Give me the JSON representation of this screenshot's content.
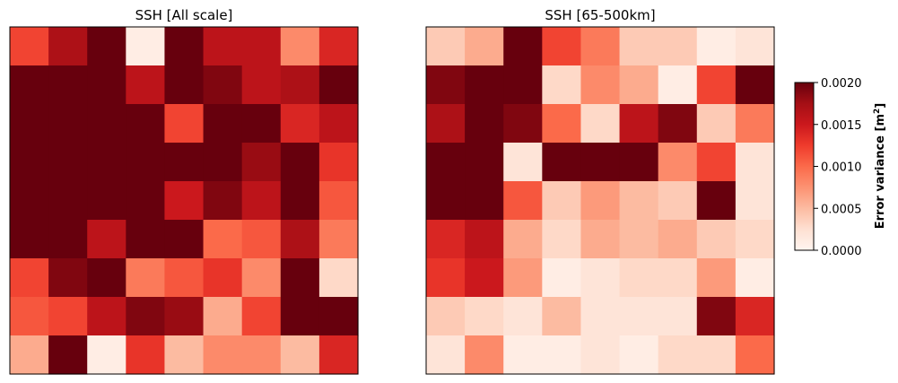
{
  "chart_data": [
    {
      "type": "heatmap",
      "title": "SSH [All scale]",
      "rows": 9,
      "cols": 9,
      "values": [
        [
          0.0012,
          0.0017,
          0.002,
          0.0001,
          0.002,
          0.0016,
          0.0016,
          0.0008,
          0.0014
        ],
        [
          0.002,
          0.002,
          0.002,
          0.0016,
          0.002,
          0.0019,
          0.0016,
          0.0017,
          0.002
        ],
        [
          0.002,
          0.002,
          0.002,
          0.002,
          0.0012,
          0.002,
          0.002,
          0.0014,
          0.0016
        ],
        [
          0.002,
          0.002,
          0.002,
          0.002,
          0.002,
          0.002,
          0.0018,
          0.002,
          0.0013
        ],
        [
          0.002,
          0.002,
          0.002,
          0.002,
          0.0015,
          0.0019,
          0.0016,
          0.002,
          0.0011
        ],
        [
          0.002,
          0.002,
          0.0016,
          0.002,
          0.002,
          0.001,
          0.0011,
          0.0017,
          0.0009
        ],
        [
          0.0012,
          0.0019,
          0.002,
          0.0009,
          0.0011,
          0.0013,
          0.0008,
          0.002,
          0.0003
        ],
        [
          0.0011,
          0.0012,
          0.0016,
          0.0019,
          0.0018,
          0.0006,
          0.0012,
          0.002,
          0.002
        ],
        [
          0.0006,
          0.002,
          0.0001,
          0.0013,
          0.0005,
          0.0008,
          0.0008,
          0.0005,
          0.0014
        ]
      ]
    },
    {
      "type": "heatmap",
      "title": "SSH [65-500km]",
      "rows": 9,
      "cols": 9,
      "values": [
        [
          0.0004,
          0.0006,
          0.002,
          0.0012,
          0.0009,
          0.0004,
          0.0004,
          0.0001,
          0.0002
        ],
        [
          0.0019,
          0.002,
          0.002,
          0.0003,
          0.0008,
          0.0006,
          0.0001,
          0.0012,
          0.002
        ],
        [
          0.0017,
          0.002,
          0.0019,
          0.001,
          0.0003,
          0.0016,
          0.0019,
          0.0004,
          0.0009
        ],
        [
          0.002,
          0.002,
          0.0002,
          0.002,
          0.002,
          0.002,
          0.0008,
          0.0012,
          0.0002
        ],
        [
          0.002,
          0.002,
          0.0011,
          0.0004,
          0.0007,
          0.0005,
          0.0004,
          0.002,
          0.0002
        ],
        [
          0.0014,
          0.0016,
          0.0006,
          0.0003,
          0.0006,
          0.0005,
          0.0006,
          0.0004,
          0.0003
        ],
        [
          0.0013,
          0.0015,
          0.0007,
          0.0001,
          0.0002,
          0.0003,
          0.0003,
          0.0007,
          0.0001
        ],
        [
          0.0004,
          0.0003,
          0.0002,
          0.0005,
          0.0002,
          0.0002,
          0.0002,
          0.0019,
          0.0014
        ],
        [
          0.0002,
          0.0008,
          0.0001,
          0.0001,
          0.0002,
          0.0001,
          0.0003,
          0.0003,
          0.001
        ]
      ]
    }
  ],
  "colorbar": {
    "label_main": "Error variance [m",
    "label_sup": "2",
    "label_end": "]",
    "min": 0.0,
    "max": 0.002,
    "ticks": [
      "0.0000",
      "0.0005",
      "0.0010",
      "0.0015",
      "0.0020"
    ],
    "colormap": "Reds",
    "color_stops": [
      "#fff5f0",
      "#fee0d2",
      "#fcbba1",
      "#fc9272",
      "#fb6a4a",
      "#ef3b2c",
      "#cb181d",
      "#a50f15",
      "#67000d"
    ]
  }
}
